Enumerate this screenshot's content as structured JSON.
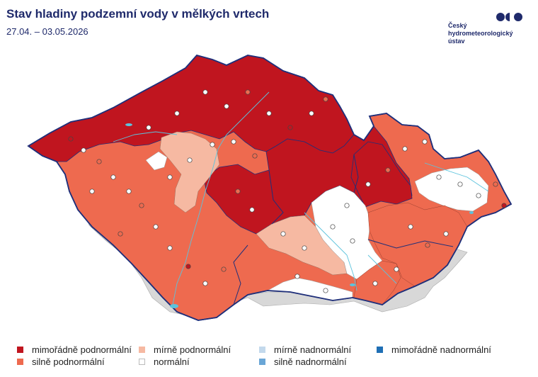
{
  "title": "Stav hladiny podzemní vody v mělkých vrtech",
  "date_range": "27.04. – 03.05.2026",
  "logo": {
    "icon": "chmi-logo-icon",
    "lines": [
      "Český",
      "hydrometeorologický",
      "ústav"
    ]
  },
  "colors": {
    "mimoradne_podnormalni": "#c0151f",
    "silne_podnormalni": "#ee6a4f",
    "mirne_podnormalni": "#f6b9a2",
    "normalni": "#ffffff",
    "mirne_nadnormalni": "#c3d9ec",
    "silne_nadnormalni": "#6aa6d6",
    "mimoradne_nadnormalni": "#1f6fb5",
    "border": "#1f2f7a",
    "neighbor": "#d8d8d8",
    "river": "#5cc3dd"
  },
  "legend": [
    {
      "key": "mimoradne_podnormalni",
      "label": "mimořádně podnormální",
      "color": "#c0151f"
    },
    {
      "key": "silne_podnormalni",
      "label": "silně podnormální",
      "color": "#ee6a4f"
    },
    {
      "key": "mirne_podnormalni",
      "label": "mírně podnormální",
      "color": "#f6b9a2"
    },
    {
      "key": "normalni",
      "label": "normální",
      "color": "#ffffff"
    },
    {
      "key": "mirne_nadnormalni",
      "label": "mírně nadnormální",
      "color": "#c3d9ec"
    },
    {
      "key": "silne_nadnormalni",
      "label": "silně nadnormální",
      "color": "#6aa6d6"
    },
    {
      "key": "mimoradne_nadnormalni",
      "label": "mimořádně nadnormální",
      "color": "#1f6fb5"
    }
  ]
}
